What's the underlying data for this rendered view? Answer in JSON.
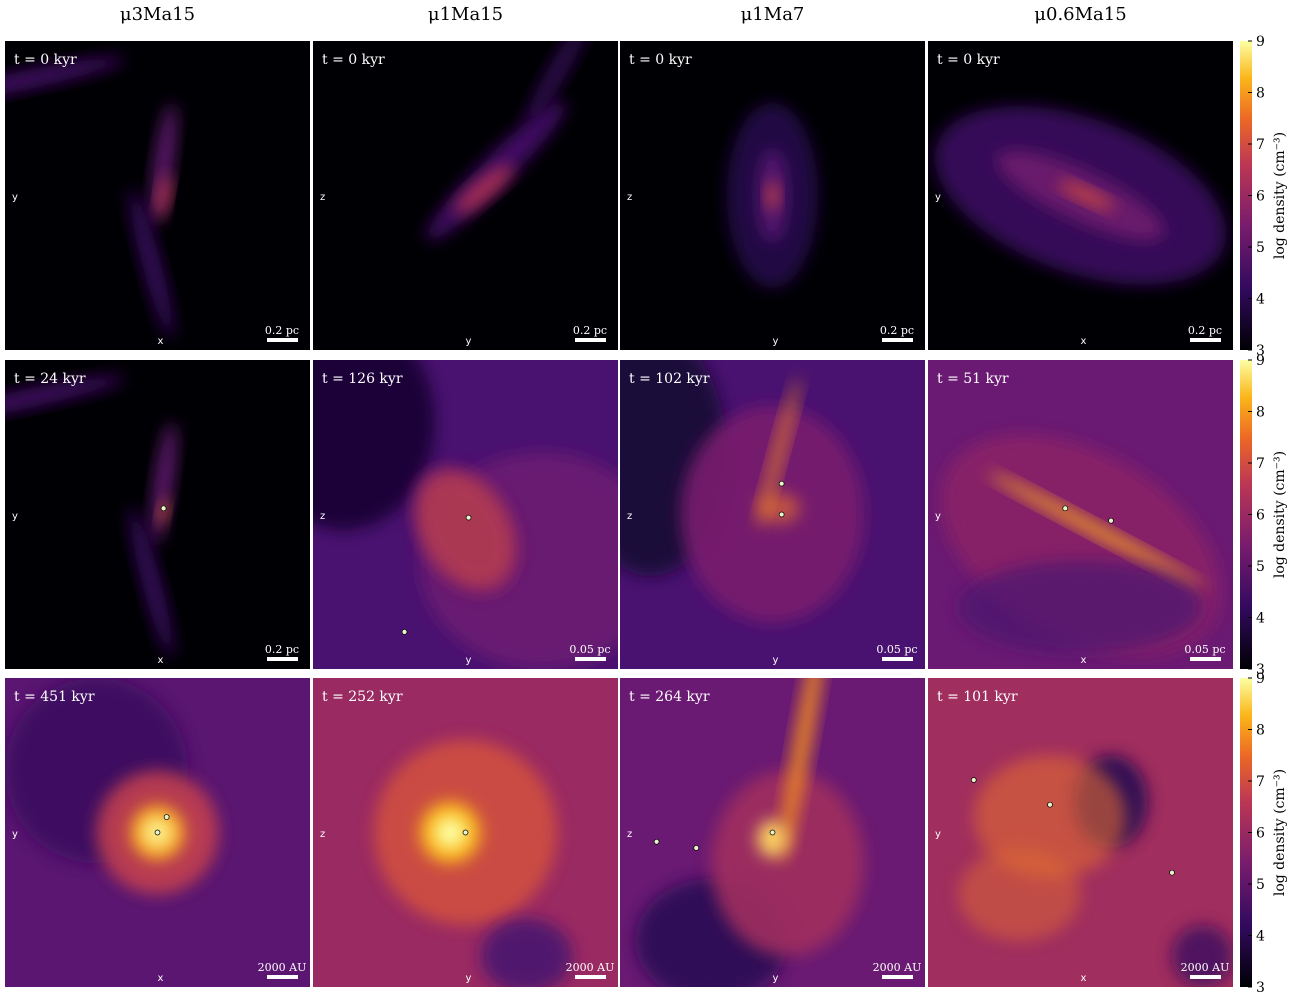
{
  "columns": [
    "μ3Ma15",
    "μ1Ma15",
    "μ1Ma7",
    "μ0.6Ma15"
  ],
  "rows": [
    {
      "panels": [
        {
          "time": "t = 0 kyr",
          "x_label": "x",
          "y_label": "y",
          "scale": "0.2 pc"
        },
        {
          "time": "t = 0 kyr",
          "x_label": "y",
          "y_label": "z",
          "scale": "0.2 pc"
        },
        {
          "time": "t = 0 kyr",
          "x_label": "y",
          "y_label": "z",
          "scale": "0.2 pc"
        },
        {
          "time": "t = 0 kyr",
          "x_label": "x",
          "y_label": "y",
          "scale": "0.2 pc"
        }
      ]
    },
    {
      "panels": [
        {
          "time": "t = 24 kyr",
          "x_label": "x",
          "y_label": "y",
          "scale": "0.2 pc"
        },
        {
          "time": "t = 126 kyr",
          "x_label": "y",
          "y_label": "z",
          "scale": "0.05 pc"
        },
        {
          "time": "t = 102 kyr",
          "x_label": "y",
          "y_label": "z",
          "scale": "0.05 pc"
        },
        {
          "time": "t = 51 kyr",
          "x_label": "x",
          "y_label": "y",
          "scale": "0.05 pc"
        }
      ]
    },
    {
      "panels": [
        {
          "time": "t = 451 kyr",
          "x_label": "x",
          "y_label": "y",
          "scale": "2000 AU"
        },
        {
          "time": "t = 252 kyr",
          "x_label": "y",
          "y_label": "z",
          "scale": "2000 AU"
        },
        {
          "time": "t = 264 kyr",
          "x_label": "y",
          "y_label": "z",
          "scale": "2000 AU"
        },
        {
          "time": "t = 101 kyr",
          "x_label": "x",
          "y_label": "y",
          "scale": "2000 AU"
        }
      ]
    }
  ],
  "colorbar": {
    "label": "log density (cm⁻³)",
    "ticks": [
      3,
      4,
      5,
      6,
      7,
      8,
      9
    ]
  }
}
